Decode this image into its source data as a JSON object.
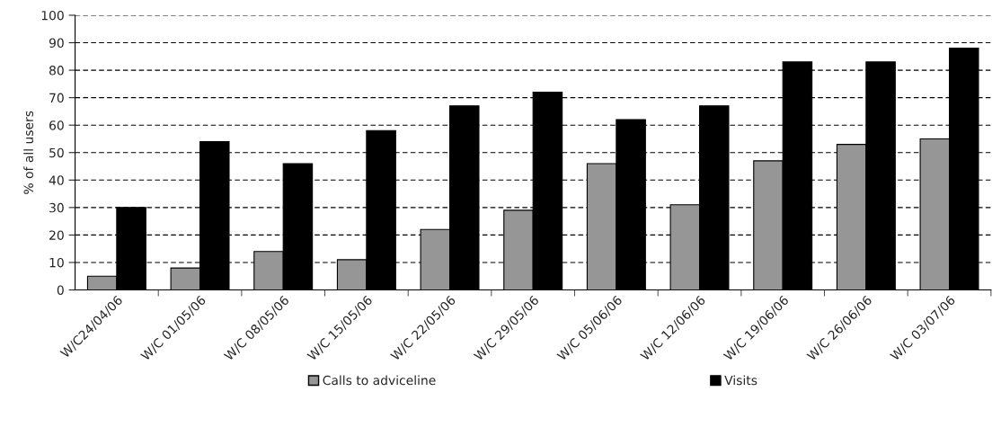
{
  "chart_data": {
    "type": "bar",
    "ylabel": "% of all users",
    "categories": [
      "W/C24/04/06",
      "W/C 01/05/06",
      "W/C 08/05/06",
      "W/C 15/05/06",
      "W/C 22/05/06",
      "W/C 29/05/06",
      "W/C 05/06/06",
      "W/C 12/06/06",
      "W/C 19/06/06",
      "W/C 26/06/06",
      "W/C 03/07/06"
    ],
    "series": [
      {
        "name": "Calls to adviceline",
        "color": "#969696",
        "values": [
          5,
          8,
          14,
          11,
          22,
          29,
          46,
          31,
          47,
          53,
          55
        ]
      },
      {
        "name": "Visits",
        "color": "#000000",
        "values": [
          30,
          54,
          46,
          58,
          67,
          72,
          62,
          67,
          83,
          83,
          88
        ]
      }
    ],
    "ylim": [
      0,
      100
    ],
    "yticks": [
      0,
      10,
      20,
      30,
      40,
      50,
      60,
      70,
      80,
      90,
      100
    ],
    "grid": "y",
    "legend": "bottom"
  }
}
